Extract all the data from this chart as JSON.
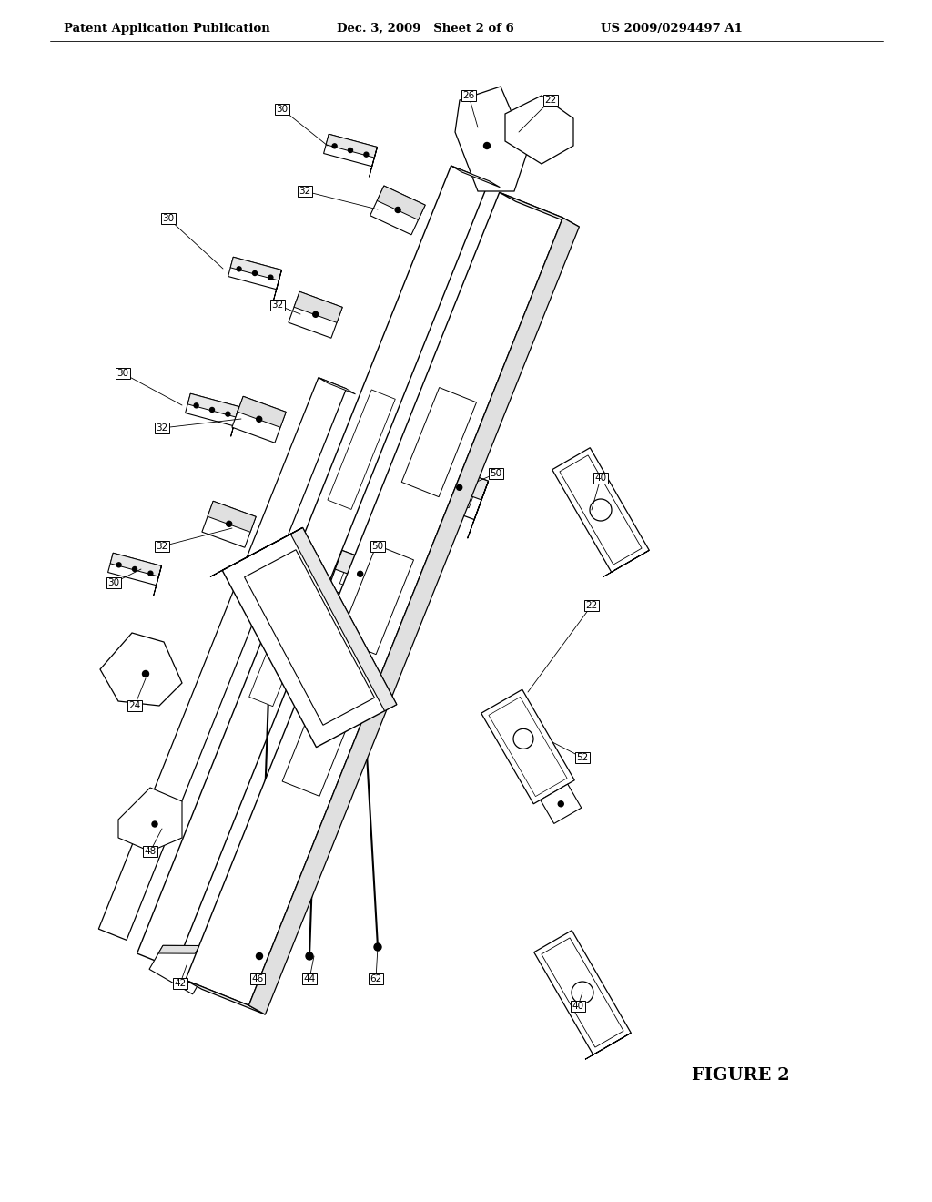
{
  "title_left": "Patent Application Publication",
  "title_mid": "Dec. 3, 2009   Sheet 2 of 6",
  "title_right": "US 2009/0294497 A1",
  "figure_label": "FIGURE 2",
  "background_color": "#ffffff",
  "header_fontsize": 9.5,
  "label_fontsize": 7.5,
  "figure_label_fontsize": 14
}
